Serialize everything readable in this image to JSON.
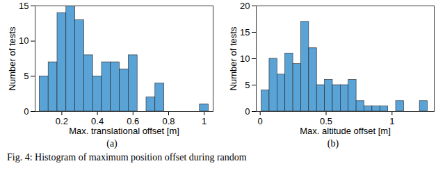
{
  "chart_data": [
    {
      "type": "histogram",
      "title": "(a)",
      "x_label": "Max. translational offset [m]",
      "y_label": "Number of tests",
      "bins": [
        0.075,
        0.125,
        0.175,
        0.225,
        0.275,
        0.325,
        0.375,
        0.425,
        0.475,
        0.525,
        0.575,
        0.625,
        0.675,
        0.725,
        0.775,
        0.825,
        0.875,
        0.925,
        0.975,
        1.025
      ],
      "values": [
        5,
        7,
        14,
        15,
        13,
        8,
        5,
        7,
        7,
        6,
        8,
        0,
        2,
        4,
        0,
        0,
        0,
        0,
        1
      ],
      "color": "#5aa3d6",
      "xlim": [
        0.05,
        1.05
      ],
      "xticks": [
        0.2,
        0.4,
        0.6,
        0.8,
        1
      ],
      "ylim": [
        0,
        15
      ],
      "yticks": [
        0,
        5,
        10,
        15
      ]
    },
    {
      "type": "histogram",
      "title": "(b)",
      "x_label": "Max. altitude offset [m]",
      "y_label": "Number of tests",
      "bins": [
        0.01,
        0.07,
        0.13,
        0.19,
        0.25,
        0.31,
        0.37,
        0.43,
        0.49,
        0.55,
        0.61,
        0.67,
        0.73,
        0.79,
        0.85,
        0.91,
        0.97,
        1.03,
        1.09,
        1.15,
        1.21,
        1.27
      ],
      "values": [
        4,
        10,
        7,
        11,
        9,
        17,
        12,
        5,
        6,
        5,
        5,
        6,
        2,
        1,
        1,
        1,
        0,
        2,
        0,
        0,
        2
      ],
      "color": "#5aa3d6",
      "xlim": [
        -0.03,
        1.32
      ],
      "xticks": [
        0,
        0.5,
        1
      ],
      "ylim": [
        0,
        20
      ],
      "yticks": [
        0,
        5,
        10,
        15,
        20
      ]
    }
  ],
  "caption": "Fig. 4: Histogram of maximum position offset during random"
}
